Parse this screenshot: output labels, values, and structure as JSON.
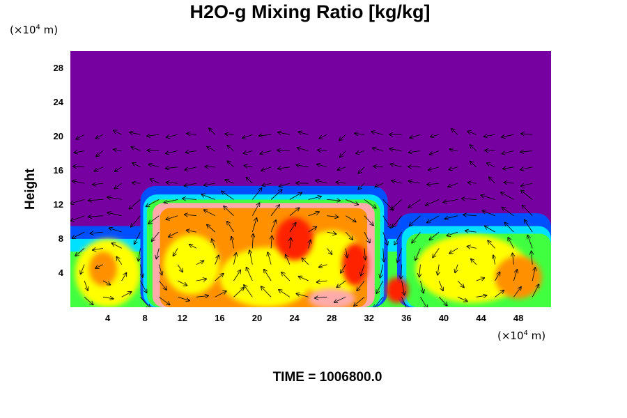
{
  "chart_data": {
    "type": "heatmap",
    "title": "H2O-g Mixing Ratio [kg/kg]",
    "ylabel": "Height",
    "x_unit_prefix": "(×10",
    "x_unit_exp": "4",
    "x_unit_suffix": " m)",
    "y_unit_prefix": "(×10",
    "y_unit_exp": "4",
    "y_unit_suffix": " m)",
    "xlim": [
      0,
      51.5
    ],
    "ylim": [
      0,
      30
    ],
    "x_ticks": [
      4,
      8,
      12,
      16,
      20,
      24,
      28,
      32,
      36,
      40,
      44,
      48
    ],
    "y_ticks": [
      4,
      8,
      12,
      16,
      20,
      24,
      28
    ],
    "time_label": "TIME = 1006800.0",
    "colors": {
      "background_field": "#7700a0",
      "blue": "#0050ff",
      "cyan": "#00e0ff",
      "green": "#40ff40",
      "yellow": "#ffff00",
      "orange": "#ff9000",
      "red": "#ff2000",
      "pink": "#ffaaaa"
    }
  }
}
